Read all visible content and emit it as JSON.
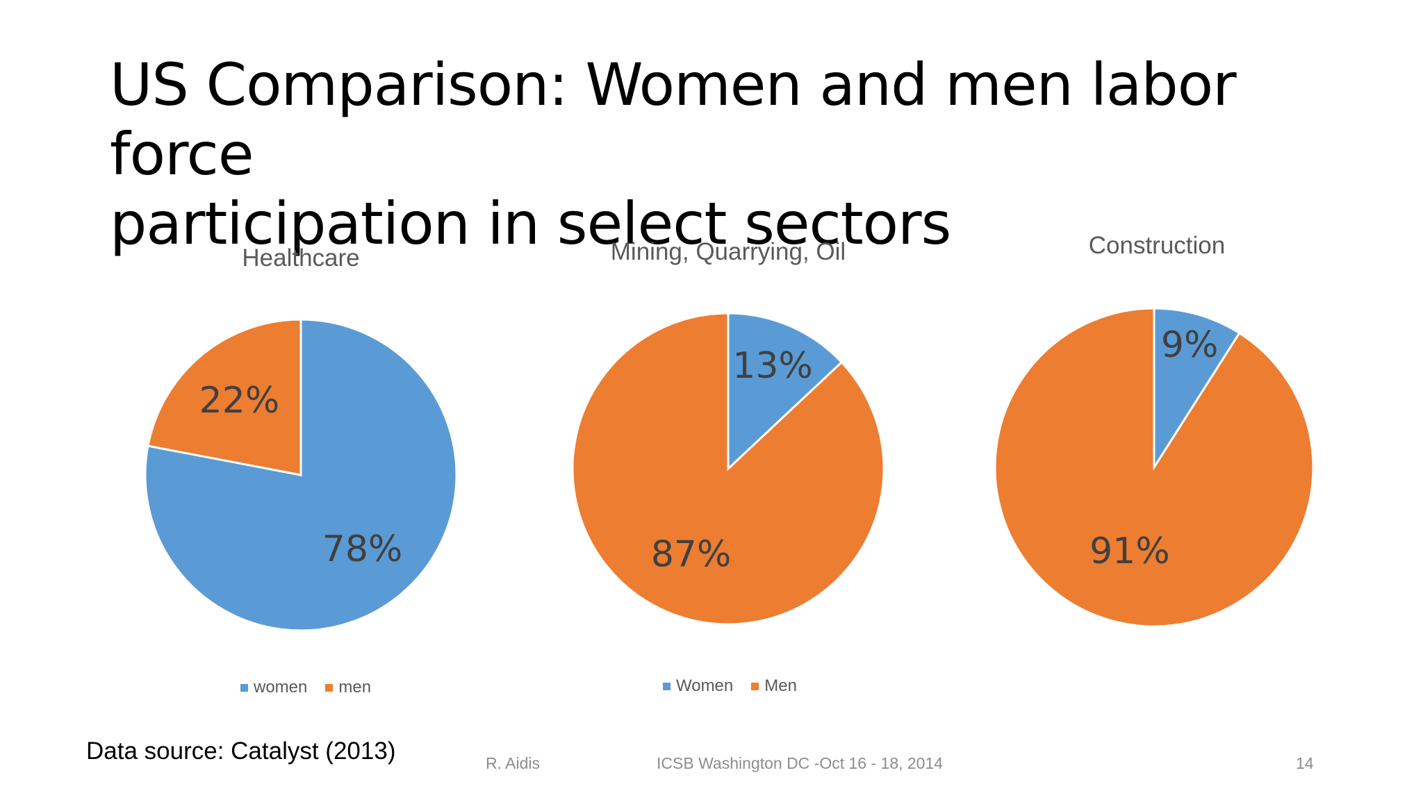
{
  "slide": {
    "title_line1": "US Comparison: Women and men labor force",
    "title_line2": "participation in select sectors",
    "source": "Data source: Catalyst (2013)",
    "footer_author": "R. Aidis",
    "footer_event": "ICSB Washington DC -Oct 16 - 18, 2014",
    "page_number": "14"
  },
  "colors": {
    "women": "#5b9bd5",
    "men": "#ed7d31"
  },
  "chart_data": [
    {
      "type": "pie",
      "title": "Healthcare",
      "categories": [
        "women",
        "men"
      ],
      "values": [
        78,
        22
      ],
      "data_labels": [
        "78%",
        "22%"
      ],
      "legend": [
        "women",
        "men"
      ],
      "legend_position": "bottom"
    },
    {
      "type": "pie",
      "title": "Mining, Quarrying, Oil",
      "categories": [
        "Women",
        "Men"
      ],
      "values": [
        13,
        87
      ],
      "data_labels": [
        "13%",
        "87%"
      ],
      "legend": [
        "Women",
        "Men"
      ],
      "legend_position": "bottom"
    },
    {
      "type": "pie",
      "title": "Construction",
      "categories": [
        "Women",
        "Men"
      ],
      "values": [
        9,
        91
      ],
      "data_labels": [
        "9%",
        "91%"
      ],
      "legend": [],
      "legend_position": "none"
    }
  ]
}
